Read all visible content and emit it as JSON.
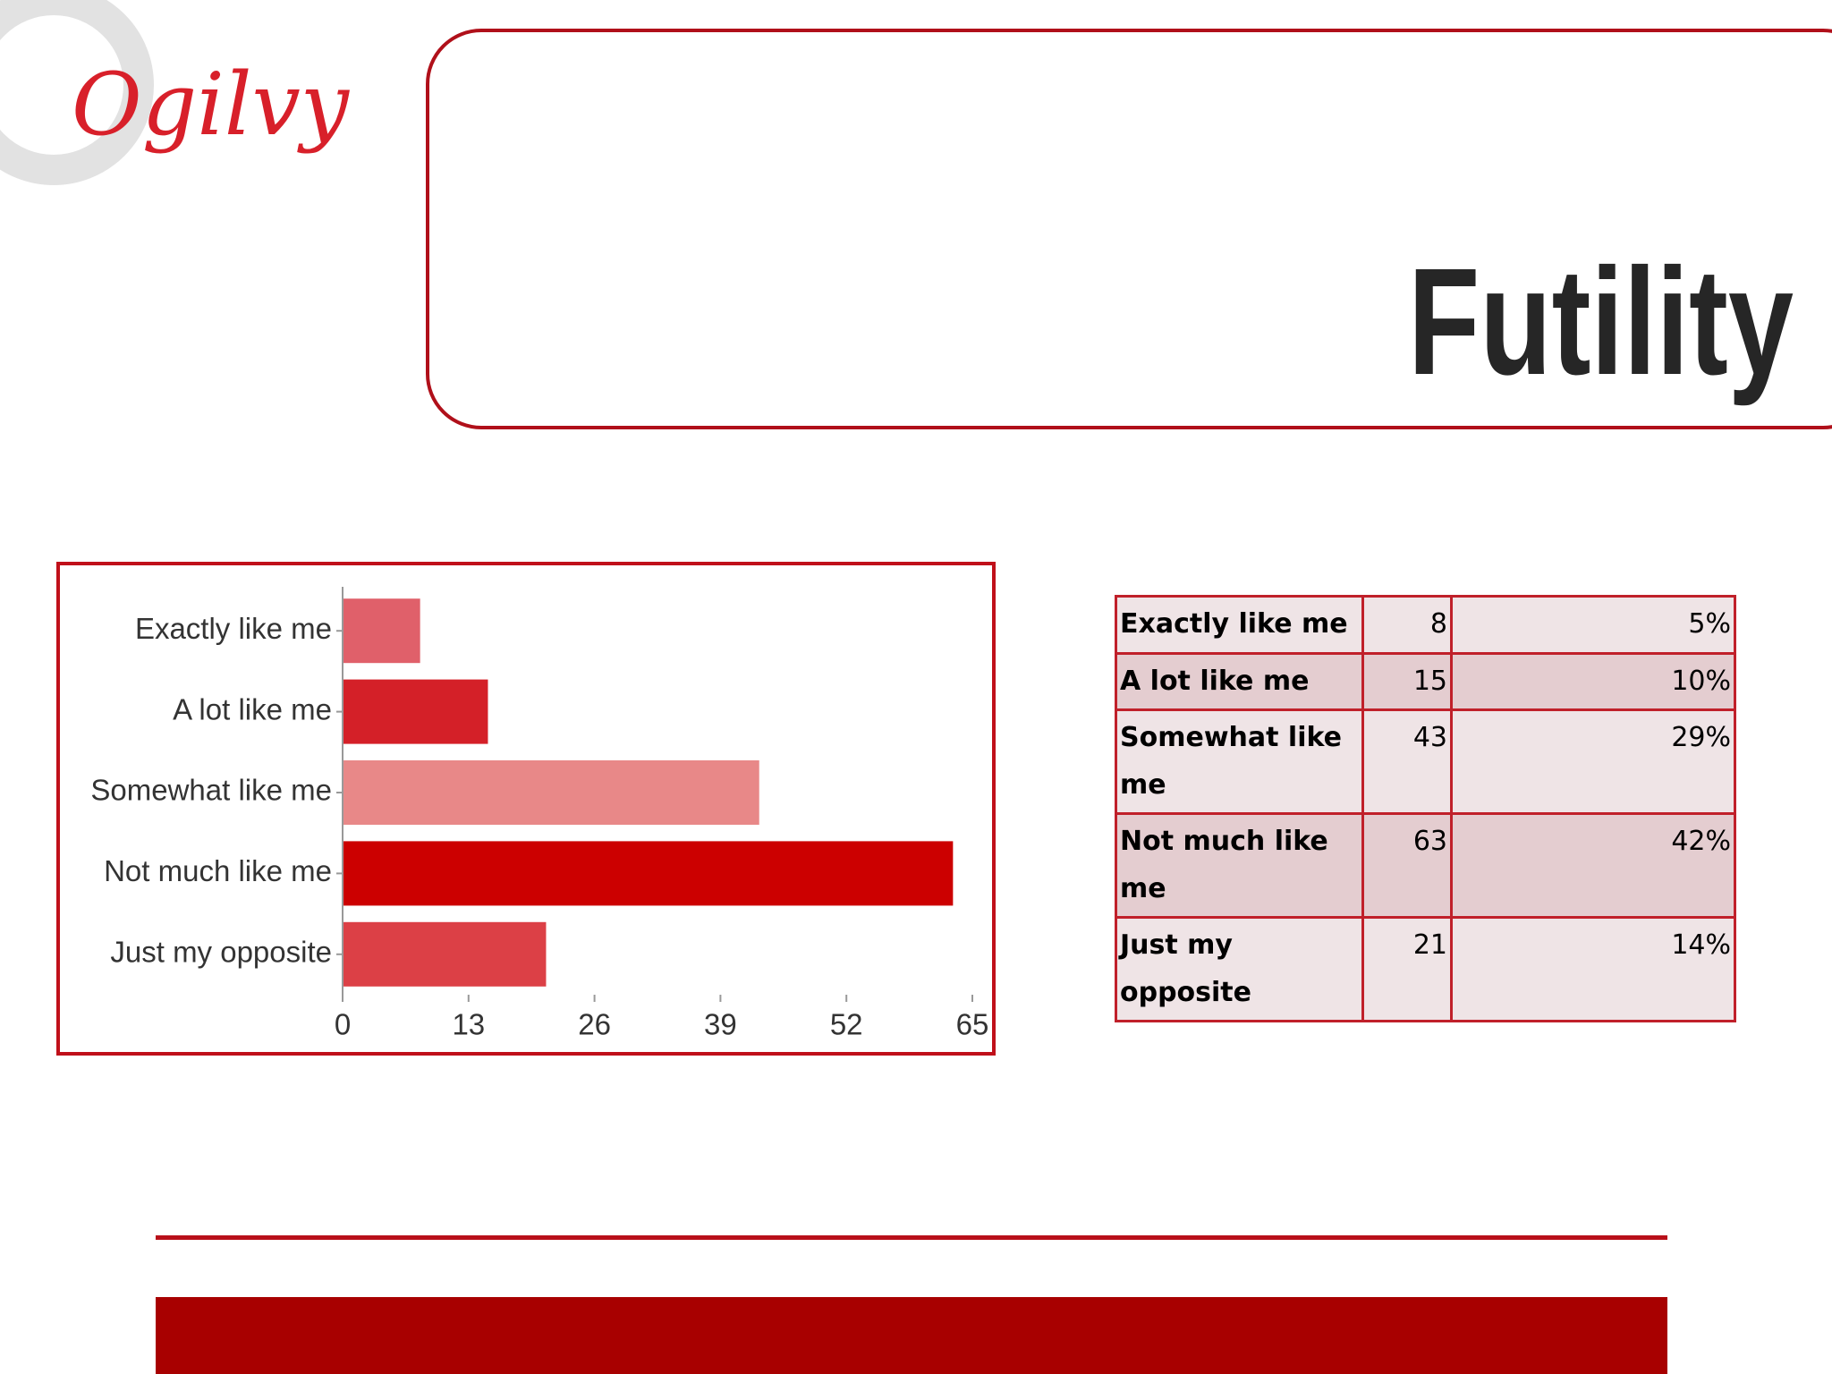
{
  "logo": "Ogilvy",
  "title": "Futility",
  "chart_data": {
    "type": "bar",
    "orientation": "horizontal",
    "categories": [
      "Exactly like me",
      "A lot like me",
      "Somewhat like me",
      "Not much like me",
      "Just my opposite"
    ],
    "values": [
      8,
      15,
      43,
      63,
      21
    ],
    "colors": [
      "#e0606a",
      "#d42028",
      "#e88888",
      "#cc0000",
      "#dc4046"
    ],
    "xlim": [
      0,
      65
    ],
    "xticks": [
      0,
      13,
      26,
      39,
      52,
      65
    ]
  },
  "table": {
    "rows": [
      [
        "Exactly like me",
        "8",
        "5%"
      ],
      [
        "A lot like me",
        "15",
        "10%"
      ],
      [
        "Somewhat like me",
        "43",
        "29%"
      ],
      [
        "Not much like me",
        "63",
        "42%"
      ],
      [
        "Just my opposite",
        "21",
        "14%"
      ]
    ]
  }
}
